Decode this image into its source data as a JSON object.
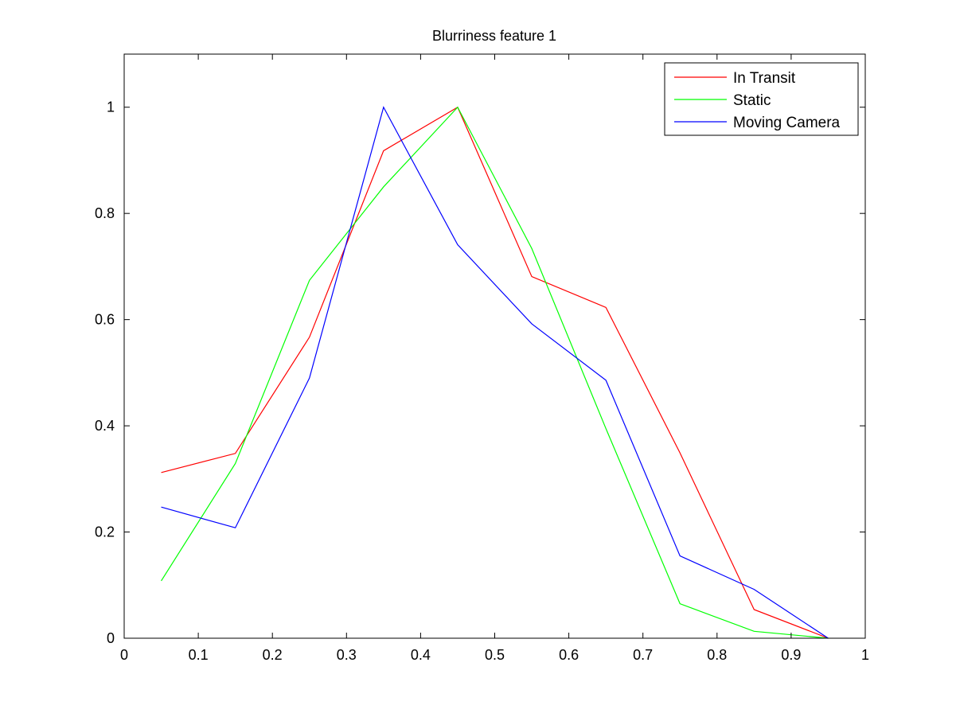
{
  "chart_data": {
    "type": "line",
    "title": "Blurriness feature 1",
    "xlabel": "",
    "ylabel": "",
    "xlim": [
      0,
      1
    ],
    "ylim": [
      0,
      1.1
    ],
    "xticks": [
      0,
      0.1,
      0.2,
      0.3,
      0.4,
      0.5,
      0.6,
      0.7,
      0.8,
      0.9,
      1
    ],
    "xtick_labels": [
      "0",
      "0.1",
      "0.2",
      "0.3",
      "0.4",
      "0.5",
      "0.6",
      "0.7",
      "0.8",
      "0.9",
      "1"
    ],
    "yticks": [
      0,
      0.2,
      0.4,
      0.6,
      0.8,
      1
    ],
    "ytick_labels": [
      "0",
      "0.2",
      "0.4",
      "0.6",
      "0.8",
      "1"
    ],
    "grid": false,
    "legend_position": "top-right",
    "x": [
      0.05,
      0.15,
      0.25,
      0.35,
      0.45,
      0.55,
      0.65,
      0.75,
      0.85,
      0.95
    ],
    "series": [
      {
        "name": "In Transit",
        "color": "#ff0000",
        "values": [
          0.312,
          0.348,
          0.567,
          0.918,
          1.0,
          0.681,
          0.623,
          0.349,
          0.054,
          0.0
        ]
      },
      {
        "name": "Static",
        "color": "#00ff00",
        "values": [
          0.108,
          0.329,
          0.674,
          0.85,
          1.0,
          0.734,
          0.395,
          0.065,
          0.013,
          0.0
        ]
      },
      {
        "name": "Moving Camera",
        "color": "#0000ff",
        "values": [
          0.247,
          0.208,
          0.49,
          1.0,
          0.741,
          0.592,
          0.486,
          0.155,
          0.092,
          0.0
        ]
      }
    ]
  }
}
